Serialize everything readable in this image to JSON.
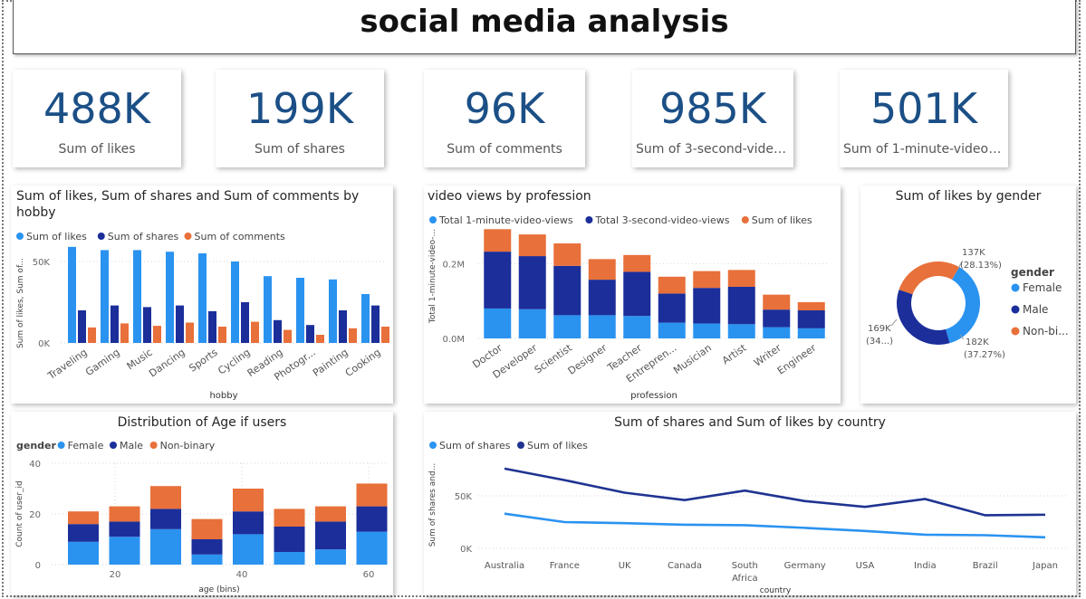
{
  "title": "social media analysis",
  "kpis": [
    {
      "value": "488K",
      "label": "Sum of likes"
    },
    {
      "value": "199K",
      "label": "Sum of shares"
    },
    {
      "value": "96K",
      "label": "Sum of comments"
    },
    {
      "value": "985K",
      "label": "Sum of 3-second-video..."
    },
    {
      "value": "501K",
      "label": "Sum of 1-minute-video-v..."
    }
  ],
  "colors": {
    "light_blue": "#2a93f0",
    "dark_blue": "#1b2e9a",
    "orange": "#e8703a",
    "line_dark": "#1f3391",
    "line_light": "#2a93f0"
  },
  "chart_data": [
    {
      "type": "bar",
      "title": "Sum of likes, Sum of shares and Sum of comments by hobby",
      "xlabel": "hobby",
      "ylabel": "Sum of likes, Sum of...",
      "ylim": [
        0,
        60000
      ],
      "yticks": [
        "0K",
        "50K"
      ],
      "legend": "top",
      "categories": [
        "Traveling",
        "Gaming",
        "Music",
        "Dancing",
        "Sports",
        "Cycling",
        "Reading",
        "Photogr...",
        "Painting",
        "Cooking"
      ],
      "series": [
        {
          "name": "Sum of likes",
          "color": "#2a93f0",
          "values": [
            59000,
            57000,
            57000,
            56000,
            55000,
            50000,
            41000,
            40000,
            39000,
            30000
          ]
        },
        {
          "name": "Sum of shares",
          "color": "#1b2e9a",
          "values": [
            20000,
            23000,
            22000,
            23000,
            19500,
            25000,
            14000,
            11000,
            20000,
            23000
          ]
        },
        {
          "name": "Sum of comments",
          "color": "#e8703a",
          "values": [
            9500,
            12000,
            10500,
            12500,
            10000,
            13000,
            8000,
            5000,
            9000,
            10000
          ]
        }
      ]
    },
    {
      "type": "bar",
      "stacked": true,
      "title": "video views by profession",
      "xlabel": "profession",
      "ylabel": "Total 1-minute-video-...",
      "ylim": [
        0,
        300000
      ],
      "yticks": [
        "0.0M",
        "0.2M"
      ],
      "legend": "top",
      "categories": [
        "Doctor",
        "Developer",
        "Scientist",
        "Designer",
        "Teacher",
        "Entrepren...",
        "Musician",
        "Artist",
        "Writer",
        "Engineer"
      ],
      "series": [
        {
          "name": "Total 1-minute-video-views",
          "color": "#2a93f0",
          "values": [
            80000,
            78000,
            62000,
            62000,
            60000,
            42000,
            40000,
            38000,
            30000,
            27000
          ]
        },
        {
          "name": "Total 3-second-video-views",
          "color": "#1b2e9a",
          "values": [
            152000,
            142000,
            132000,
            95000,
            118000,
            78000,
            95000,
            100000,
            47000,
            48000
          ]
        },
        {
          "name": "Sum of likes",
          "color": "#e8703a",
          "values": [
            60000,
            58000,
            60000,
            55000,
            45000,
            45000,
            45000,
            45000,
            40000,
            22000
          ]
        }
      ]
    },
    {
      "type": "pie",
      "donut": true,
      "title": "Sum of likes by gender",
      "legend": "right",
      "legend_title": "gender",
      "slices": [
        {
          "name": "Female",
          "color": "#2a93f0",
          "value": 182000,
          "label": "182K",
          "pct_label": "(37.27%)"
        },
        {
          "name": "Male",
          "color": "#1b2e9a",
          "value": 169000,
          "label": "169K",
          "pct_label": "(34...)"
        },
        {
          "name": "Non-binary",
          "legend_label": "Non-bi...",
          "color": "#e8703a",
          "value": 137000,
          "label": "137K",
          "pct_label": "(28.13%)"
        }
      ]
    },
    {
      "type": "bar",
      "stacked": true,
      "title": "Distribution of Age if users",
      "xlabel": "age (bins)",
      "ylabel": "Count of user_id",
      "legend": "top",
      "legend_title": "gender",
      "ylim": [
        0,
        40
      ],
      "yticks": [
        0,
        20,
        40
      ],
      "x_range": [
        10,
        63
      ],
      "xticks": [
        20,
        40,
        60
      ],
      "x": [
        15,
        21.5,
        28,
        34.5,
        41,
        47.5,
        54,
        60.5
      ],
      "series": [
        {
          "name": "Female",
          "color": "#2a93f0",
          "values": [
            9,
            11,
            14,
            4,
            12,
            5,
            6,
            13
          ]
        },
        {
          "name": "Male",
          "color": "#1b2e9a",
          "values": [
            7,
            6,
            8,
            6,
            9,
            10,
            11,
            10
          ]
        },
        {
          "name": "Non-binary",
          "color": "#e8703a",
          "values": [
            5,
            6,
            9,
            8,
            9,
            7,
            6,
            9
          ]
        }
      ]
    },
    {
      "type": "line",
      "title": "Sum of shares and Sum of likes by country",
      "xlabel": "country",
      "ylabel": "Sum of shares and...",
      "ylim": [
        0,
        100000
      ],
      "yticks": [
        "0K",
        "50K"
      ],
      "legend": "top",
      "categories": [
        "Australia",
        "France",
        "UK",
        "Canada",
        "South Africa",
        "Germany",
        "USA",
        "India",
        "Brazil",
        "Japan"
      ],
      "series": [
        {
          "name": "Sum of shares",
          "color": "#2a93f0",
          "values": [
            33000,
            25000,
            24000,
            22500,
            22000,
            19500,
            16500,
            13000,
            12500,
            10500
          ]
        },
        {
          "name": "Sum of likes",
          "color": "#1f3391",
          "values": [
            76000,
            65000,
            53000,
            46000,
            55000,
            45000,
            39500,
            47000,
            31500,
            32000
          ]
        }
      ]
    }
  ]
}
